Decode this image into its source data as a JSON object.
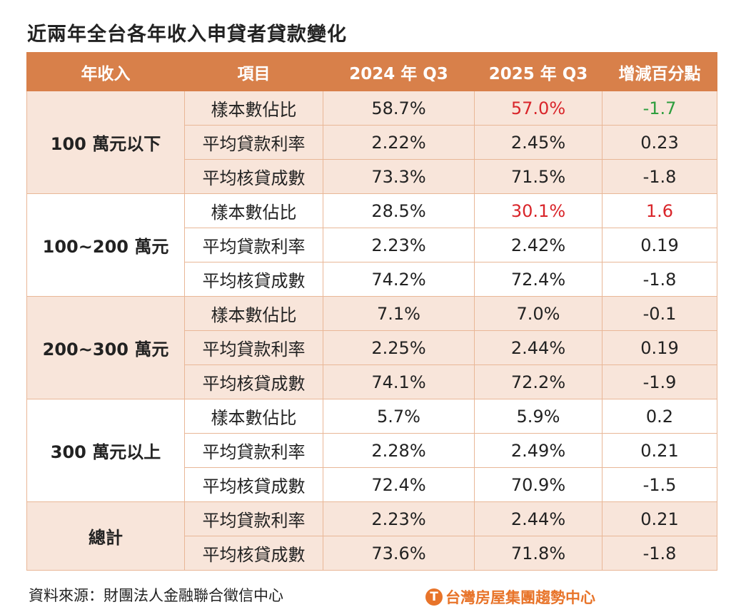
{
  "title": "近兩年全台各年收入申貸者貸款變化",
  "headers": [
    "年收入",
    "項目",
    "2024 年 Q3",
    "2025 年 Q3",
    "增減百分點"
  ],
  "groups": [
    {
      "label": "100 萬元以下",
      "rows": [
        [
          "樣本數佔比",
          "58.7%",
          "57.0%",
          "-1.7"
        ],
        [
          "平均貸款利率",
          "2.22%",
          "2.45%",
          "0.23"
        ],
        [
          "平均核貸成數",
          "73.3%",
          "71.5%",
          "-1.8"
        ]
      ]
    },
    {
      "label": "100~200 萬元",
      "rows": [
        [
          "樣本數佔比",
          "28.5%",
          "30.1%",
          "1.6"
        ],
        [
          "平均貸款利率",
          "2.23%",
          "2.42%",
          "0.19"
        ],
        [
          "平均核貸成數",
          "74.2%",
          "72.4%",
          "-1.8"
        ]
      ]
    },
    {
      "label": "200~300 萬元",
      "rows": [
        [
          "樣本數佔比",
          "7.1%",
          "7.0%",
          "-0.1"
        ],
        [
          "平均貸款利率",
          "2.25%",
          "2.44%",
          "0.19"
        ],
        [
          "平均核貸成數",
          "74.1%",
          "72.2%",
          "-1.9"
        ]
      ]
    },
    {
      "label": "300 萬元以上",
      "rows": [
        [
          "樣本數佔比",
          "5.7%",
          "5.9%",
          "0.2"
        ],
        [
          "平均貸款利率",
          "2.28%",
          "2.49%",
          "0.21"
        ],
        [
          "平均核貸成數",
          "72.4%",
          "70.9%",
          "-1.5"
        ]
      ]
    },
    {
      "label": "總計",
      "rows": [
        [
          "平均貸款利率",
          "2.23%",
          "2.44%",
          "0.21"
        ],
        [
          "平均核貸成數",
          "73.6%",
          "71.8%",
          "-1.8"
        ]
      ]
    }
  ],
  "highlights": {
    "red": [
      "0.0.2",
      "1.0.2",
      "1.0.3"
    ],
    "green": [
      "0.0.3"
    ]
  },
  "colors": {
    "header": "#d8804a",
    "band": "#f8e5da",
    "border": "#e9b797",
    "red": "#d9252a",
    "green": "#2e9e3e",
    "logo": "#e8742a"
  },
  "source": "資料來源：財團法人金融聯合徵信中心",
  "logo_text": "台灣房屋集團趨勢中心"
}
